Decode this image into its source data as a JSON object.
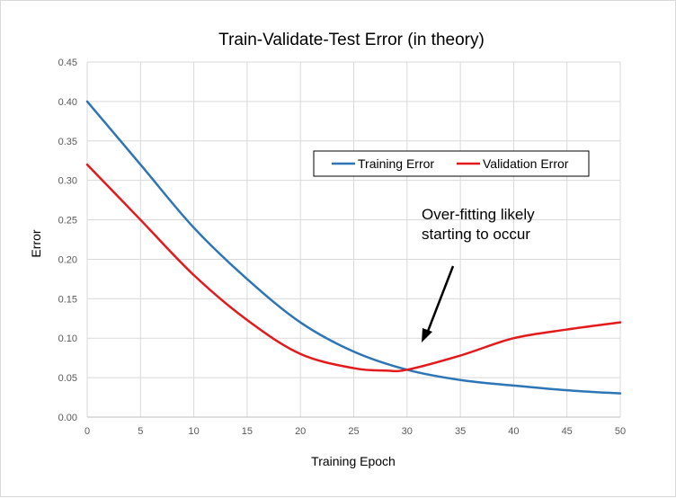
{
  "chart_data": {
    "type": "line",
    "title": "Train-Validate-Test  Error  (in theory)",
    "xlabel": "Training Epoch",
    "ylabel": "Error",
    "xlim": [
      0,
      50
    ],
    "ylim": [
      0,
      0.45
    ],
    "x_ticks": [
      "0",
      "5",
      "10",
      "15",
      "20",
      "25",
      "30",
      "35",
      "40",
      "45",
      "50"
    ],
    "y_ticks": [
      "0.00",
      "0.05",
      "0.10",
      "0.15",
      "0.20",
      "0.25",
      "0.30",
      "0.35",
      "0.40",
      "0.45"
    ],
    "x_tick_values": [
      0,
      5,
      10,
      15,
      20,
      25,
      30,
      35,
      40,
      45,
      50
    ],
    "y_tick_values": [
      0,
      0.05,
      0.1,
      0.15,
      0.2,
      0.25,
      0.3,
      0.35,
      0.4,
      0.45
    ],
    "grid": true,
    "legend_position": "top-right",
    "series": [
      {
        "name": "Training Error",
        "color": "#2e75b6",
        "x": [
          0,
          5,
          10,
          15,
          20,
          25,
          30,
          35,
          40,
          45,
          50
        ],
        "y": [
          0.4,
          0.32,
          0.24,
          0.175,
          0.12,
          0.083,
          0.06,
          0.047,
          0.04,
          0.034,
          0.03
        ]
      },
      {
        "name": "Validation Error",
        "color": "#e31a1c",
        "x": [
          0,
          5,
          10,
          15,
          20,
          25,
          28,
          30,
          35,
          40,
          45,
          50
        ],
        "y": [
          0.32,
          0.25,
          0.18,
          0.123,
          0.08,
          0.062,
          0.059,
          0.06,
          0.078,
          0.1,
          0.111,
          0.12
        ]
      }
    ],
    "annotations": [
      {
        "text_lines": [
          "Over-fitting likely",
          "starting to occur"
        ],
        "arrow_color": "#000000"
      }
    ]
  }
}
